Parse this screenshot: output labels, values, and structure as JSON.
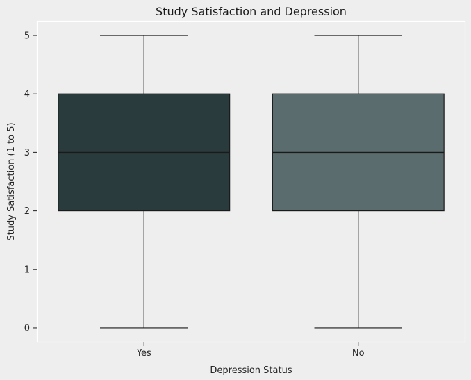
{
  "chart_data": {
    "type": "boxplot",
    "title": "Study Satisfaction and Depression",
    "xlabel": "Depression Status",
    "ylabel": "Study Satisfaction (1 to 5)",
    "categories": [
      "Yes",
      "No"
    ],
    "series": [
      {
        "name": "Yes",
        "whisker_low": 0,
        "q1": 2,
        "median": 3,
        "q3": 4,
        "whisker_high": 5,
        "fill_color": "#2a3b3d"
      },
      {
        "name": "No",
        "whisker_low": 0,
        "q1": 2,
        "median": 3,
        "q3": 4,
        "whisker_high": 5,
        "fill_color": "#5b6c6e"
      }
    ],
    "yticks": [
      0,
      1,
      2,
      3,
      4,
      5
    ],
    "ylim": [
      -0.25,
      5.25
    ],
    "box_width": 0.8,
    "cap_width": 0.41,
    "grid": false,
    "legend": null,
    "colors": {
      "background": "#eeeeee",
      "plot_background": "#eeeeee",
      "spine": "#ffffff",
      "tick": "#333333",
      "text": "#262626",
      "box_edge": "#1a1a1a"
    }
  }
}
